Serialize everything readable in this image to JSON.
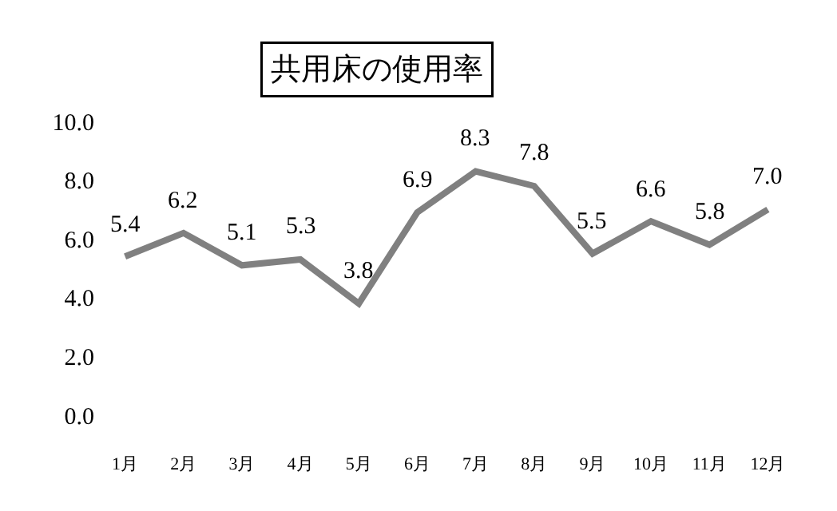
{
  "chart_data": {
    "type": "line",
    "title": "共用床の使用率",
    "categories": [
      "1月",
      "2月",
      "3月",
      "4月",
      "5月",
      "6月",
      "7月",
      "8月",
      "9月",
      "10月",
      "11月",
      "12月"
    ],
    "series": [
      {
        "color": "#808080",
        "values": [
          5.4,
          6.2,
          5.1,
          5.3,
          3.8,
          6.9,
          8.3,
          7.8,
          5.5,
          6.6,
          5.8,
          7.0
        ]
      }
    ],
    "value_labels": [
      "5.4",
      "6.2",
      "5.1",
      "5.3",
      "3.8",
      "6.9",
      "8.3",
      "7.8",
      "5.5",
      "6.6",
      "5.8",
      "7.0"
    ],
    "ylim": [
      0,
      10
    ],
    "yticks": [
      {
        "value": 0,
        "label": "0.0"
      },
      {
        "value": 2,
        "label": "2.0"
      },
      {
        "value": 4,
        "label": "4.0"
      },
      {
        "value": 6,
        "label": "6.0"
      },
      {
        "value": 8,
        "label": "8.0"
      },
      {
        "value": 10,
        "label": "10.0"
      }
    ],
    "legend": false,
    "marker": "none",
    "line_style": "solid"
  }
}
